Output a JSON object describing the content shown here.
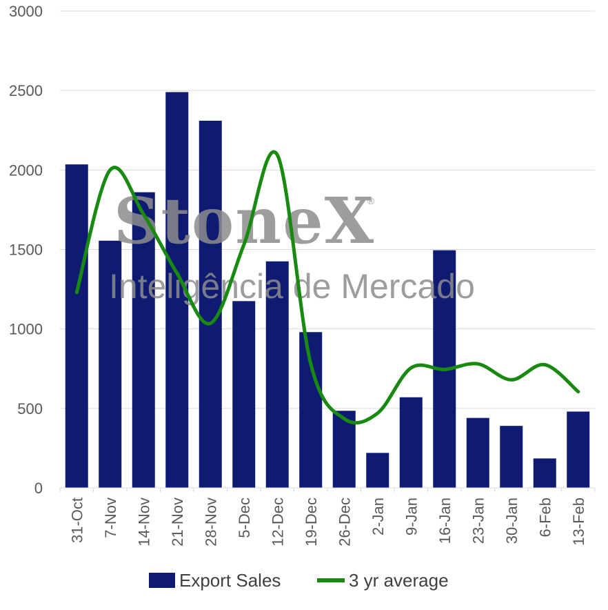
{
  "chart_data": {
    "type": "bar",
    "categories": [
      "31-Oct",
      "7-Nov",
      "14-Nov",
      "21-Nov",
      "28-Nov",
      "5-Dec",
      "12-Dec",
      "19-Dec",
      "26-Dec",
      "2-Jan",
      "9-Jan",
      "16-Jan",
      "23-Jan",
      "30-Jan",
      "6-Feb",
      "13-Feb"
    ],
    "series": [
      {
        "name": "Export Sales",
        "type": "bar",
        "color": "#0f1a72",
        "values": [
          2035,
          1555,
          1860,
          2490,
          2310,
          1175,
          1425,
          980,
          485,
          220,
          570,
          1495,
          440,
          390,
          185,
          480
        ]
      },
      {
        "name": "3 yr average",
        "type": "line",
        "smooth": true,
        "color": "#178a0f",
        "values": [
          1230,
          2000,
          1720,
          1350,
          1035,
          1530,
          2095,
          780,
          435,
          470,
          755,
          745,
          780,
          680,
          775,
          605
        ]
      }
    ],
    "ylim": [
      0,
      3000
    ],
    "yticks": [
      0,
      500,
      1000,
      1500,
      2000,
      2500,
      3000
    ],
    "grid": "horizontal",
    "legend_position": "bottom",
    "watermark": {
      "brand": "StoneX",
      "registered_mark": "®",
      "tagline": "Inteligência de Mercado"
    }
  }
}
